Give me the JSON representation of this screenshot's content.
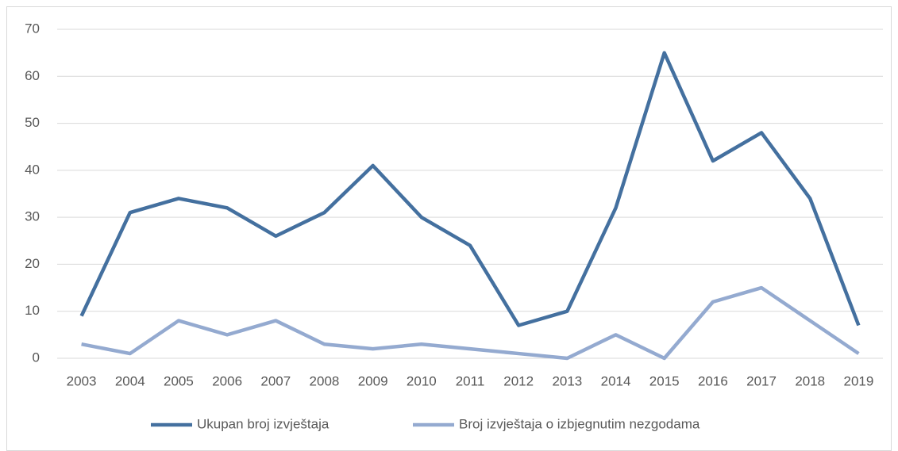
{
  "chart_data": {
    "type": "line",
    "categories": [
      "2003",
      "2004",
      "2005",
      "2006",
      "2007",
      "2008",
      "2009",
      "2010",
      "2011",
      "2012",
      "2013",
      "2014",
      "2015",
      "2016",
      "2017",
      "2018",
      "2019"
    ],
    "series": [
      {
        "name": "Ukupan broj izvještaja",
        "color": "#44709f",
        "values": [
          9,
          31,
          34,
          32,
          26,
          31,
          41,
          30,
          24,
          7,
          10,
          32,
          65,
          42,
          48,
          34,
          7
        ]
      },
      {
        "name": "Broj izvještaja o izbjegnutim nezgodama",
        "color": "#94aad0",
        "values": [
          3,
          1,
          8,
          5,
          8,
          3,
          2,
          3,
          2,
          1,
          0,
          5,
          0,
          12,
          15,
          8,
          1
        ]
      }
    ],
    "ylim": [
      0,
      70
    ],
    "yticks": [
      0,
      10,
      20,
      30,
      40,
      50,
      60,
      70
    ],
    "grid": true,
    "legend": "bottom"
  }
}
